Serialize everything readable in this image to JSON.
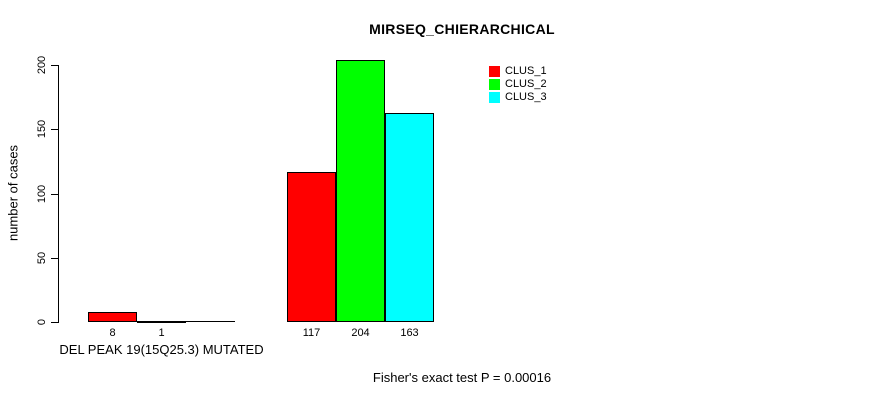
{
  "chart_data": {
    "type": "bar",
    "title": "MIRSEQ_CHIERARCHICAL",
    "ylabel": "number of cases",
    "xlabel": "",
    "ylim": [
      0,
      200
    ],
    "yticks": [
      0,
      50,
      100,
      150,
      200
    ],
    "grid": false,
    "legend_position": "top-right",
    "background_color": "#ffffff",
    "axis_color": "#000000",
    "series": [
      {
        "name": "CLUS_1",
        "color": "#ff0000"
      },
      {
        "name": "CLUS_2",
        "color": "#00ff00"
      },
      {
        "name": "CLUS_3",
        "color": "#00ffff"
      }
    ],
    "groups": [
      {
        "label": "DEL PEAK 19(15Q25.3) MUTATED",
        "values": [
          8,
          1,
          0
        ],
        "value_labels": [
          "8",
          "1",
          ""
        ]
      },
      {
        "label": "",
        "values": [
          117,
          204,
          163
        ],
        "value_labels": [
          "117",
          "204",
          "163"
        ]
      }
    ],
    "footnote": "Fisher's exact test P = 0.00016"
  }
}
